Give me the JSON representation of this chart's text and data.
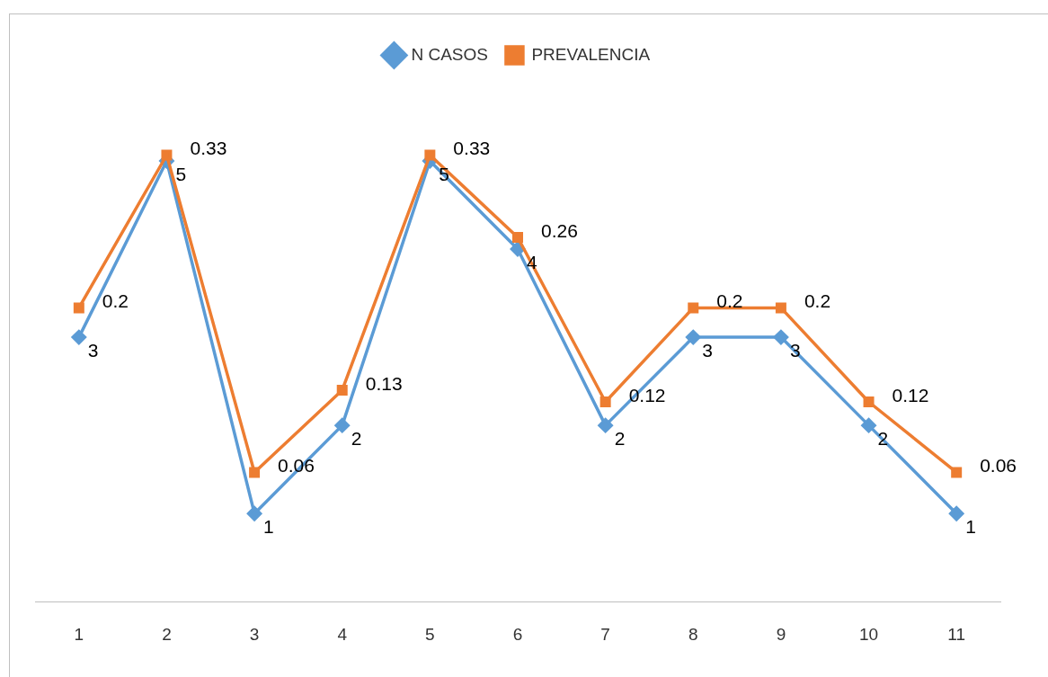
{
  "chart_data": {
    "type": "line",
    "categories": [
      "1",
      "2",
      "3",
      "4",
      "5",
      "6",
      "7",
      "8",
      "9",
      "10",
      "11"
    ],
    "series": [
      {
        "name": "N CASOS",
        "color": "#5b9bd5",
        "marker": "diamond",
        "values": [
          3,
          5,
          1,
          2,
          5,
          4,
          2,
          3,
          3,
          2,
          1
        ]
      },
      {
        "name": "PREVALENCIA",
        "color": "#ed7d31",
        "marker": "square",
        "axis": "y2",
        "values": [
          0.2,
          0.33,
          0.06,
          0.13,
          0.33,
          0.26,
          0.12,
          0.2,
          0.2,
          0.12,
          0.06
        ]
      }
    ],
    "tick_labels": "x",
    "grid": false,
    "legend": "top",
    "data_labels": true,
    "line_style": "solid"
  }
}
